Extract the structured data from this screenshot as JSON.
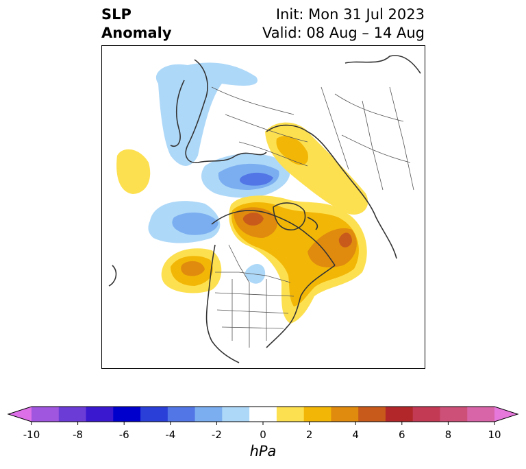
{
  "title": {
    "left_line1": "SLP",
    "left_line2": "Anomaly",
    "right_line1": "Init: Mon 31 Jul 2023",
    "right_line2": "Valid: 08 Aug – 14 Aug"
  },
  "colorbar": {
    "unit": "hPa",
    "min": -10,
    "max": 10,
    "ticks": [
      "-10",
      "-8",
      "-6",
      "-4",
      "-2",
      "0",
      "2",
      "4",
      "6",
      "8",
      "10"
    ],
    "extend": "both",
    "colors": [
      "#dd70e8",
      "#a056de",
      "#6c3cd6",
      "#3a18d0",
      "#0000cc",
      "#2a3fd8",
      "#5276e6",
      "#7aaef0",
      "#aed8f8",
      "#ffffff",
      "#fde050",
      "#f2b706",
      "#e08a0e",
      "#c85a1c",
      "#b2282a",
      "#c33a55",
      "#cc5078",
      "#d865a8",
      "#e678dc"
    ]
  },
  "map": {
    "projection": "polar-stereographic",
    "features": [
      "coastlines",
      "country-borders",
      "state-borders",
      "slp-anomaly-contours"
    ]
  }
}
